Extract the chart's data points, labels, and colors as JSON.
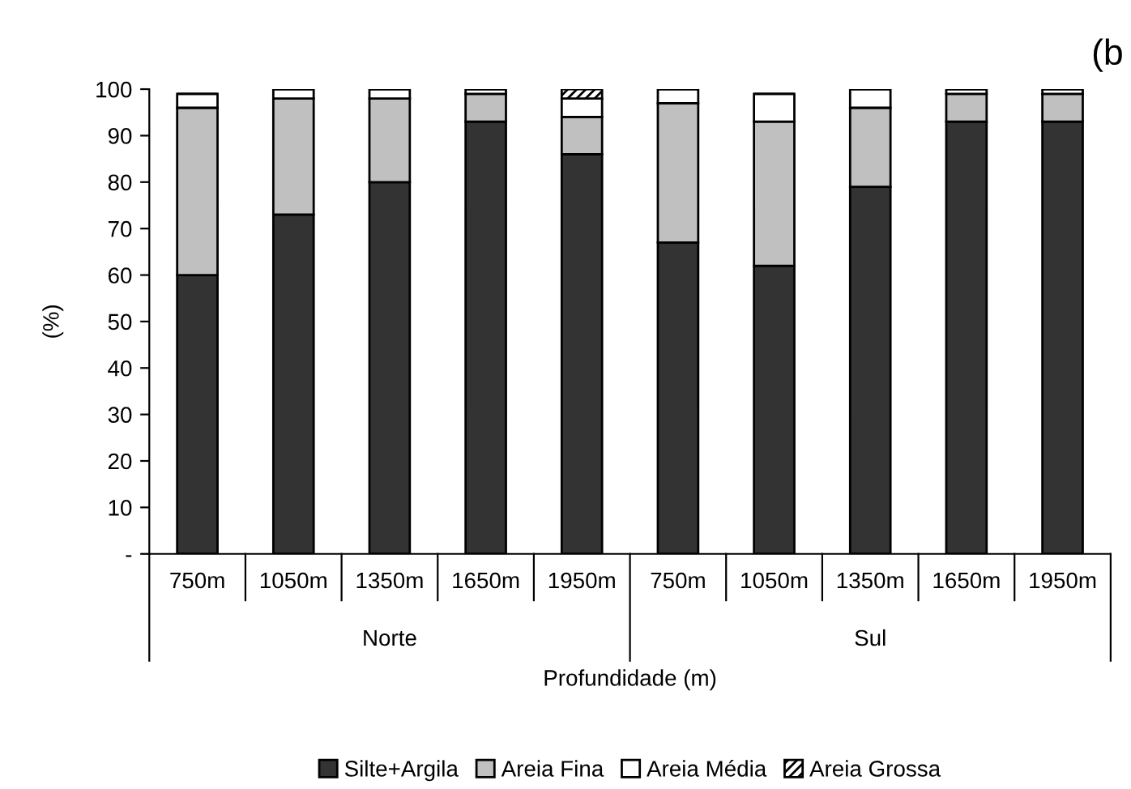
{
  "chart_data": {
    "type": "bar",
    "stacked": true,
    "categories": [
      "750m",
      "1050m",
      "1350m",
      "1650m",
      "1950m",
      "750m",
      "1050m",
      "1350m",
      "1650m",
      "1950m"
    ],
    "series": [
      {
        "name": "Silte+Argila",
        "color": "#333333",
        "values": [
          60,
          73,
          80,
          93,
          86,
          67,
          62,
          79,
          93,
          93
        ]
      },
      {
        "name": "Areia Fina",
        "color": "#c0c0c0",
        "values": [
          36,
          25,
          18,
          6,
          8,
          30,
          31,
          17,
          6,
          6
        ]
      },
      {
        "name": "Areia Média",
        "color": "#ffffff",
        "values": [
          3,
          2,
          2,
          1,
          4,
          3,
          6,
          4,
          1,
          1
        ]
      },
      {
        "name": "Areia Grossa",
        "color": "#000000",
        "values": [
          0,
          0,
          0,
          0,
          2,
          0,
          0,
          0,
          0,
          0
        ]
      }
    ],
    "ylim": [
      0,
      100
    ],
    "yticks": [
      {
        "value": 0,
        "label": "-"
      },
      10,
      20,
      30,
      40,
      50,
      60,
      70,
      80,
      90,
      100
    ],
    "xlabel": "Profundidade (m)",
    "ylabel": "(%)",
    "legend": "bottom",
    "grid": false,
    "annotations": [
      "Norte",
      "Sul",
      "(b"
    ]
  }
}
